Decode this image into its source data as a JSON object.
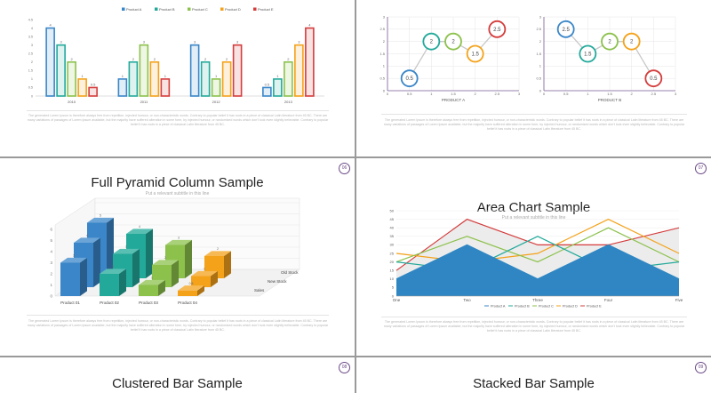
{
  "colors": {
    "blue": "#3a86c8",
    "teal": "#23a99a",
    "green": "#8cc14c",
    "orange": "#f4a21a",
    "red": "#d53c3c",
    "purple": "#6b4a86"
  },
  "caption_text": "The generated Lorem Ipsum is therefore always free from repetition, injected humour, or non-characteristic words. Contrary to popular belief it has roots in a piece of classical Latin literature from 45 BC. There are many variations of passages of Lorem Ipsum available, but the majority have suffered alteration in some form, by injected humour, or randomized words which don't look even slightly believable. Contrary to popular belief it has roots in a piece of classical Latin literature from 45 BC.",
  "slide1": {
    "chart_data": {
      "type": "bar",
      "title": "",
      "legend": [
        "Product A",
        "Product B",
        "Product C",
        "Product D",
        "Product E"
      ],
      "categories": [
        "2010",
        "2011",
        "2012",
        "2013"
      ],
      "series": [
        {
          "name": "Product A",
          "values": [
            4,
            1,
            3,
            0.5
          ]
        },
        {
          "name": "Product B",
          "values": [
            3,
            2,
            2,
            1
          ]
        },
        {
          "name": "Product C",
          "values": [
            2,
            3,
            1,
            2
          ]
        },
        {
          "name": "Product D",
          "values": [
            1,
            2,
            2,
            3
          ]
        },
        {
          "name": "Product E",
          "values": [
            0.5,
            1,
            3,
            4
          ]
        }
      ],
      "y_ticks": [
        "0",
        "0.5",
        "1",
        "1.5",
        "2",
        "2.5",
        "3",
        "3.5",
        "4",
        "4.5"
      ],
      "ylim": [
        0,
        4.5
      ]
    }
  },
  "slide2": {
    "chart_data": [
      {
        "type": "scatter",
        "xlabel": "PRODUCT A",
        "x": [
          0.5,
          1,
          1.5,
          2,
          2.5
        ],
        "y": [
          0.5,
          2,
          2,
          1.5,
          2.5
        ],
        "labels": [
          "0.5",
          "2",
          "2",
          "1.5",
          "2.5"
        ],
        "ticks": [
          "0",
          "0.5",
          "1",
          "1.5",
          "2",
          "2.5",
          "3"
        ],
        "xlim": [
          0,
          3
        ],
        "ylim": [
          0,
          3
        ]
      },
      {
        "type": "scatter",
        "xlabel": "PRODUCT B",
        "x": [
          0.5,
          1,
          1.5,
          2,
          2.5
        ],
        "y": [
          2.5,
          1.5,
          2,
          2,
          0.5
        ],
        "labels": [
          "2.5",
          "1.5",
          "2",
          "2",
          "0.5"
        ],
        "ticks": [
          "0",
          "0.5",
          "1",
          "1.5",
          "2",
          "2.5",
          "3"
        ],
        "xlim": [
          0,
          3
        ],
        "ylim": [
          0,
          3
        ]
      }
    ]
  },
  "slide3": {
    "badge": "06",
    "title": "Full Pyramid Column Sample",
    "subtitle": "Put a relevant subtitle in this line",
    "chart_data": {
      "type": "bar",
      "categories": [
        "Product 01",
        "Product 02",
        "Product 03",
        "Product 04"
      ],
      "series": [
        {
          "name": "Sales",
          "values": [
            3,
            2,
            1,
            0.5
          ]
        },
        {
          "name": "New Stock",
          "values": [
            4,
            3,
            2,
            1
          ]
        },
        {
          "name": "Old Stock",
          "values": [
            5,
            4,
            3,
            2
          ]
        }
      ],
      "series_labels": [
        "Old Stock",
        "New Stock",
        "Sales"
      ],
      "y_ticks": [
        "0",
        "1",
        "2",
        "3",
        "4",
        "5",
        "6"
      ],
      "ylim": [
        0,
        6
      ]
    }
  },
  "slide4": {
    "badge": "07",
    "title": "Area Chart Sample",
    "subtitle": "Put a relevant subtitle in this line",
    "chart_data": {
      "type": "area",
      "categories": [
        "One",
        "Two",
        "Three",
        "Four",
        "Five"
      ],
      "series": [
        {
          "name": "Product A",
          "values": [
            10,
            30,
            10,
            30,
            10
          ]
        },
        {
          "name": "Product B",
          "values": [
            20,
            15,
            35,
            15,
            20
          ]
        },
        {
          "name": "Product C",
          "values": [
            20,
            35,
            20,
            40,
            20
          ]
        },
        {
          "name": "Product D",
          "values": [
            25,
            20,
            25,
            45,
            25
          ]
        },
        {
          "name": "Product E",
          "values": [
            15,
            45,
            30,
            30,
            40
          ]
        }
      ],
      "legend": [
        "Product A",
        "Product B",
        "Product C",
        "Product D",
        "Product E"
      ],
      "y_ticks": [
        "0",
        "5",
        "10",
        "15",
        "20",
        "25",
        "30",
        "35",
        "40",
        "45",
        "50"
      ],
      "ylim": [
        0,
        50
      ]
    }
  },
  "slide5": {
    "badge": "08",
    "title": "Clustered Bar Sample"
  },
  "slide6": {
    "badge": "09",
    "title": "Stacked Bar Sample"
  }
}
